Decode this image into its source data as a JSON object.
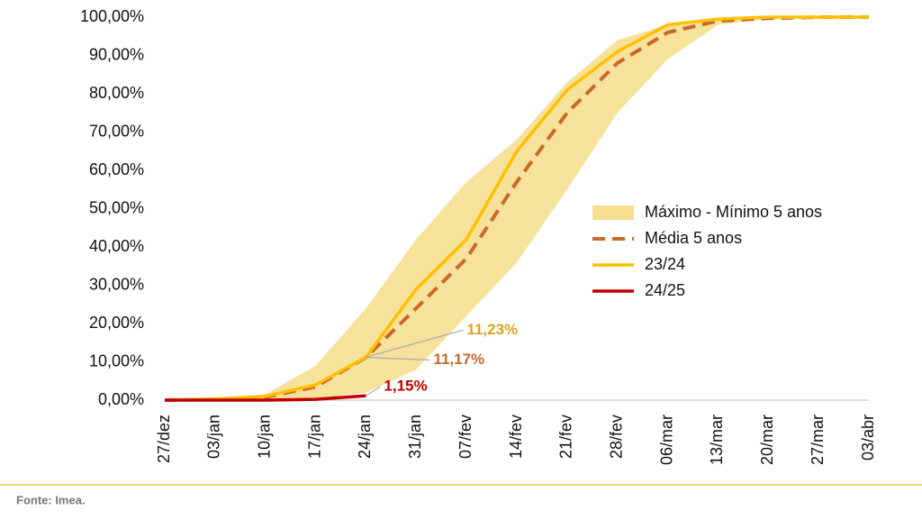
{
  "chart_data": {
    "type": "line",
    "categories": [
      "27/dez",
      "03/jan",
      "10/jan",
      "17/jan",
      "24/jan",
      "31/jan",
      "07/fev",
      "14/fev",
      "21/fev",
      "28/fev",
      "06/mar",
      "13/mar",
      "20/mar",
      "27/mar",
      "03/abr"
    ],
    "ylim": [
      0,
      100
    ],
    "yticks": [
      {
        "value": 0,
        "label": "0,00%"
      },
      {
        "value": 10,
        "label": "10,00%"
      },
      {
        "value": 20,
        "label": "20,00%"
      },
      {
        "value": 30,
        "label": "30,00%"
      },
      {
        "value": 40,
        "label": "40,00%"
      },
      {
        "value": 50,
        "label": "50,00%"
      },
      {
        "value": 60,
        "label": "60,00%"
      },
      {
        "value": 70,
        "label": "70,00%"
      },
      {
        "value": 80,
        "label": "80,00%"
      },
      {
        "value": 90,
        "label": "90,00%"
      },
      {
        "value": 100,
        "label": "100,00%"
      }
    ],
    "band": {
      "name": "Máximo - Mínimo 5 anos",
      "color": "#f5df8f",
      "upper": [
        0,
        0.5,
        1.5,
        9,
        24,
        42,
        57,
        68,
        83,
        94,
        98,
        99.5,
        100,
        100,
        100
      ],
      "lower": [
        0,
        0,
        0,
        0.3,
        2,
        8,
        22,
        36,
        55,
        75,
        89,
        98,
        99.5,
        100,
        100
      ]
    },
    "series": [
      {
        "name": "Média 5 anos",
        "color": "#c8692a",
        "dashed": true,
        "values": [
          0,
          0.2,
          0.8,
          3.5,
          11.17,
          24,
          37,
          57,
          75,
          88,
          96,
          99,
          99.7,
          100,
          100
        ],
        "value_labels": [
          null,
          null,
          null,
          null,
          "11,17%",
          null,
          null,
          null,
          null,
          null,
          null,
          null,
          null,
          null,
          null
        ]
      },
      {
        "name": "23/24",
        "color": "#ffc000",
        "values": [
          0,
          0.3,
          1,
          4,
          11.23,
          29,
          42,
          65,
          81,
          91,
          98,
          99.5,
          100,
          100,
          100
        ],
        "value_labels": [
          null,
          null,
          null,
          null,
          "11,23%",
          null,
          null,
          null,
          null,
          null,
          null,
          null,
          null,
          null,
          null
        ]
      },
      {
        "name": "24/25",
        "color": "#c00000",
        "values": [
          0,
          0,
          0,
          0.2,
          1.15,
          null,
          null,
          null,
          null,
          null,
          null,
          null,
          null,
          null,
          null
        ],
        "value_labels": [
          null,
          null,
          null,
          null,
          "1,15%",
          null,
          null,
          null,
          null,
          null,
          null,
          null,
          null,
          null,
          null
        ]
      }
    ],
    "source": "Fonte: Imea."
  }
}
